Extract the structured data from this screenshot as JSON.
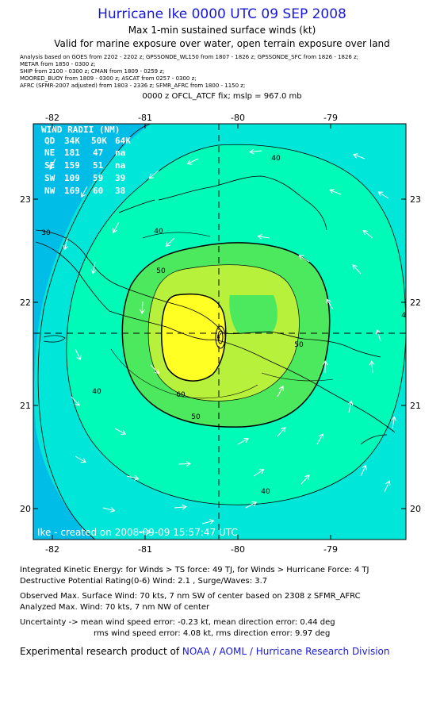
{
  "header": {
    "title": "Hurricane Ike 0000 UTC 09 SEP 2008",
    "subtitle": "Max 1-min sustained surface winds (kt)",
    "validity": "Valid for marine exposure over water, open terrain exposure over land"
  },
  "analysis_sources": [
    "Analysis based on  GOES from  2202 - 2202 z;   GPSSONDE_WL150 from  1807 - 1826 z;   GPSSONDE_SFC from  1826 - 1826 z;",
    "METAR from  1850 - 0300 z;",
    "SHIP from  2100 - 0300 z;   CMAN from  1809 - 0259 z;",
    "MOORED_BUOY from  1809 - 0300 z;   ASCAT from  0257 - 0300 z;",
    "AFRC (SFMR-2007 adjusted) from  1803 - 2336 z;   SFMR_AFRC from  1800 - 1150 z;"
  ],
  "fix": "0000 z OFCL_ATCF fix; mslp = 967.0 mb",
  "map": {
    "lon_ticks": [
      "-82",
      "-81",
      "-80",
      "-79"
    ],
    "lat_ticks": [
      "23",
      "22",
      "21",
      "20"
    ],
    "contour_labels": [
      "40",
      "40",
      "40",
      "40",
      "40",
      "50",
      "50",
      "50",
      "60",
      "30"
    ],
    "watermark": "Ike  -  created on  2008-09-09  15:57:47 UTC",
    "wind_radii": {
      "title": "WIND RADII (NM)",
      "header": [
        "QD",
        "34K",
        "50K",
        "64K"
      ],
      "rows": [
        [
          "NE",
          "181",
          "47",
          "na"
        ],
        [
          "SE",
          "159",
          "51",
          "na"
        ],
        [
          "SW",
          "109",
          "59",
          "39"
        ],
        [
          "NW",
          "169",
          "60",
          "38"
        ]
      ]
    },
    "colors": {
      "lt30": "#00bde7",
      "30to40": "#00e6d8",
      "40to50": "#00fab8",
      "50to60": "#4ce85e",
      "60to64": "#b7f13b",
      "gt64": "#ffff24"
    }
  },
  "info": {
    "ike": "Integrated Kinetic Energy:  for Winds > TS force: 49 TJ,  for Winds > Hurricane Force: 4 TJ",
    "dpr": "Destructive Potential Rating(0-6)   Wind: 2.1 , Surge/Waves: 3.7",
    "observed": "Observed Max. Surface Wind: 70 kts, 7 nm SW of center based on 2308 z SFMR_AFRC",
    "analyzed": "Analyzed Max. Wind: 70 kts, 7 nm NW of center",
    "uncertainty_1": "Uncertainty -> mean wind speed error:  -0.23 kt,   mean direction error: 0.44 deg",
    "uncertainty_2": "rms wind speed error: 4.08 kt,   rms direction error: 9.97 deg"
  },
  "credit": {
    "prefix": "Experimental research product of ",
    "org": "NOAA / AOML / Hurricane Research Division"
  }
}
